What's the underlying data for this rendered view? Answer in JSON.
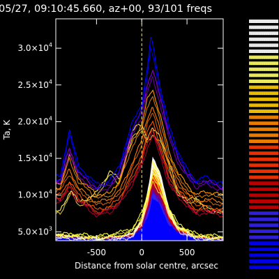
{
  "chart_data": {
    "type": "line",
    "title": "05/27, 09:10:45.660, az+00, 93/101 freq",
    "title_suffix_cut": "s",
    "xlabel": "Distance from solar centre, arcsec",
    "ylabel": "Ta, K",
    "xlim": [
      -950,
      900
    ],
    "ylim": [
      3800,
      34000
    ],
    "x_ticks": [
      -500,
      0,
      500
    ],
    "x_tick_labels": [
      "-500",
      "0",
      "500"
    ],
    "y_ticks": [
      5000,
      10000,
      15000,
      20000,
      25000,
      30000
    ],
    "y_tick_labels": [
      {
        "mant": "5.0×10",
        "exp": "3"
      },
      {
        "mant": "1.0×10",
        "exp": "4"
      },
      {
        "mant": "1.5×10",
        "exp": "4"
      },
      {
        "mant": "2.0×10",
        "exp": "4"
      },
      {
        "mant": "2.5×10",
        "exp": "4"
      },
      {
        "mant": "3.0×10",
        "exp": "4"
      }
    ],
    "marker_x": 0,
    "grid": false,
    "legend_placement": "right (overlapping colored frequency labels)",
    "colormap": [
      "#ffffff",
      "#ffff66",
      "#ffcc00",
      "#ff8800",
      "#ff3300",
      "#cc0000",
      "#990044",
      "#6600aa",
      "#3322ee",
      "#0000ff"
    ],
    "series": [
      {
        "color": "#ffffff",
        "values": [
          [
            -900,
            4500
          ],
          [
            -700,
            4300
          ],
          [
            -500,
            4100
          ],
          [
            -250,
            4300
          ],
          [
            -100,
            4700
          ],
          [
            0,
            6600
          ],
          [
            80,
            10800
          ],
          [
            120,
            14300
          ],
          [
            200,
            12600
          ],
          [
            300,
            7800
          ],
          [
            400,
            5600
          ],
          [
            600,
            4300
          ],
          [
            900,
            4100
          ]
        ]
      },
      {
        "color": "#ffff33",
        "values": [
          [
            -900,
            4700
          ],
          [
            -700,
            4700
          ],
          [
            -500,
            4400
          ],
          [
            -250,
            4900
          ],
          [
            -100,
            5500
          ],
          [
            0,
            7500
          ],
          [
            80,
            10900
          ],
          [
            120,
            12900
          ],
          [
            200,
            11200
          ],
          [
            300,
            8300
          ],
          [
            400,
            6100
          ],
          [
            600,
            4700
          ],
          [
            900,
            4400
          ]
        ]
      },
      {
        "color": "#ffee55",
        "values": [
          [
            -900,
            7800
          ],
          [
            -780,
            10800
          ],
          [
            -700,
            8900
          ],
          [
            -500,
            10300
          ],
          [
            -350,
            13300
          ],
          [
            -250,
            12100
          ],
          [
            -100,
            18700
          ],
          [
            -50,
            19500
          ],
          [
            0,
            19800
          ],
          [
            60,
            17600
          ],
          [
            120,
            19000
          ],
          [
            200,
            18200
          ],
          [
            300,
            14500
          ],
          [
            400,
            10500
          ],
          [
            500,
            9200
          ],
          [
            600,
            9800
          ],
          [
            700,
            8300
          ],
          [
            900,
            7700
          ]
        ]
      },
      {
        "color": "#ff9900",
        "values": [
          [
            -900,
            11500
          ],
          [
            -800,
            15500
          ],
          [
            -700,
            12300
          ],
          [
            -500,
            10100
          ],
          [
            -350,
            10200
          ],
          [
            -250,
            12000
          ],
          [
            -100,
            17500
          ],
          [
            0,
            19500
          ],
          [
            60,
            23000
          ],
          [
            120,
            24500
          ],
          [
            200,
            21000
          ],
          [
            300,
            16000
          ],
          [
            400,
            13000
          ],
          [
            500,
            11500
          ],
          [
            600,
            10000
          ],
          [
            700,
            10500
          ],
          [
            900,
            10000
          ]
        ]
      },
      {
        "color": "#ff7700",
        "values": [
          [
            -900,
            11000
          ],
          [
            -800,
            13500
          ],
          [
            -700,
            11000
          ],
          [
            -500,
            9000
          ],
          [
            -350,
            9500
          ],
          [
            -250,
            10500
          ],
          [
            -100,
            14500
          ],
          [
            0,
            17500
          ],
          [
            60,
            20500
          ],
          [
            120,
            22000
          ],
          [
            200,
            19000
          ],
          [
            300,
            14500
          ],
          [
            400,
            12000
          ],
          [
            500,
            10500
          ],
          [
            600,
            9000
          ],
          [
            700,
            9500
          ],
          [
            900,
            9000
          ]
        ]
      },
      {
        "color": "#ff5500",
        "values": [
          [
            -900,
            10000
          ],
          [
            -800,
            12000
          ],
          [
            -700,
            10000
          ],
          [
            -500,
            8000
          ],
          [
            -350,
            8500
          ],
          [
            -250,
            9500
          ],
          [
            -100,
            13000
          ],
          [
            0,
            15500
          ],
          [
            60,
            18500
          ],
          [
            120,
            20000
          ],
          [
            200,
            17000
          ],
          [
            300,
            13000
          ],
          [
            400,
            11000
          ],
          [
            500,
            9500
          ],
          [
            600,
            8000
          ],
          [
            700,
            8500
          ],
          [
            900,
            8000
          ]
        ]
      },
      {
        "color": "#cc0033",
        "values": [
          [
            -900,
            9500
          ],
          [
            -800,
            11000
          ],
          [
            -700,
            9500
          ],
          [
            -500,
            7500
          ],
          [
            -350,
            8000
          ],
          [
            -250,
            9000
          ],
          [
            -100,
            12000
          ],
          [
            0,
            14500
          ],
          [
            60,
            17000
          ],
          [
            120,
            19000
          ],
          [
            200,
            16000
          ],
          [
            300,
            12000
          ],
          [
            400,
            10000
          ],
          [
            500,
            9000
          ],
          [
            600,
            7500
          ],
          [
            700,
            8000
          ],
          [
            900,
            7500
          ]
        ]
      },
      {
        "color": "#8800cc",
        "values": [
          [
            -900,
            12000
          ],
          [
            -800,
            16500
          ],
          [
            -700,
            13000
          ],
          [
            -500,
            11000
          ],
          [
            -350,
            11500
          ],
          [
            -250,
            13000
          ],
          [
            -100,
            19000
          ],
          [
            0,
            21500
          ],
          [
            60,
            25000
          ],
          [
            120,
            27000
          ],
          [
            200,
            23500
          ],
          [
            300,
            18500
          ],
          [
            400,
            15000
          ],
          [
            500,
            13000
          ],
          [
            600,
            11500
          ],
          [
            700,
            12000
          ],
          [
            900,
            11000
          ]
        ]
      },
      {
        "color": "#0000ff",
        "values": [
          [
            -900,
            12500
          ],
          [
            -800,
            19000
          ],
          [
            -700,
            14000
          ],
          [
            -500,
            11500
          ],
          [
            -350,
            12000
          ],
          [
            -250,
            14000
          ],
          [
            -100,
            20000
          ],
          [
            0,
            22500
          ],
          [
            60,
            27000
          ],
          [
            100,
            31500
          ],
          [
            130,
            30000
          ],
          [
            200,
            25000
          ],
          [
            300,
            19500
          ],
          [
            400,
            16000
          ],
          [
            500,
            13500
          ],
          [
            600,
            12000
          ],
          [
            700,
            12500
          ],
          [
            900,
            11500
          ]
        ]
      }
    ],
    "right_labels": {
      "count": 42,
      "colors": [
        "#ffffff",
        "#ffff66",
        "#ffcc00",
        "#ff8800",
        "#ff3300",
        "#cc0000",
        "#3322ee",
        "#0000ff"
      ]
    }
  }
}
